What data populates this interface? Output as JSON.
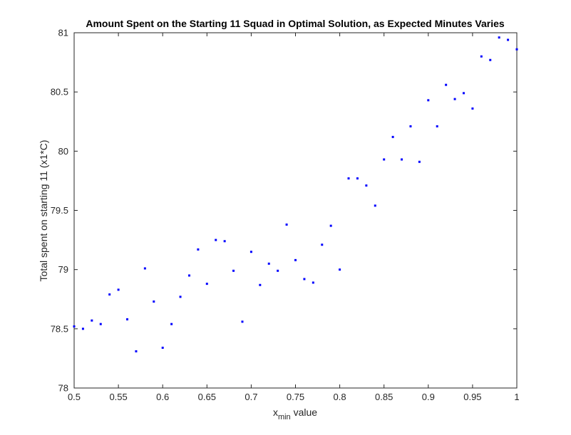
{
  "chart_data": {
    "type": "scatter",
    "title": "Amount Spent on the Starting 11 Squad in Optimal Solution, as Expected Minutes Varies",
    "xlabel": {
      "main": "x",
      "subscript": "min",
      "suffix": " value"
    },
    "ylabel": "Total spent on starting 11 (x1*C)",
    "xlim": [
      0.5,
      1.0
    ],
    "ylim": [
      78,
      81
    ],
    "xticks": [
      "0.5",
      "0.55",
      "0.6",
      "0.65",
      "0.7",
      "0.75",
      "0.8",
      "0.85",
      "0.9",
      "0.95",
      "1"
    ],
    "xtick_values": [
      0.5,
      0.55,
      0.6,
      0.65,
      0.7,
      0.75,
      0.8,
      0.85,
      0.9,
      0.95,
      1.0
    ],
    "yticks": [
      "78",
      "78.5",
      "79",
      "79.5",
      "80",
      "80.5",
      "81"
    ],
    "ytick_values": [
      78,
      78.5,
      79,
      79.5,
      80,
      80.5,
      81
    ],
    "grid": false,
    "marker_color": "#0000ff",
    "series": [
      {
        "x": [
          0.5,
          0.51,
          0.52,
          0.53,
          0.54,
          0.55,
          0.56,
          0.57,
          0.58,
          0.59,
          0.6,
          0.61,
          0.62,
          0.63,
          0.64,
          0.65,
          0.66,
          0.67,
          0.68,
          0.69,
          0.7,
          0.71,
          0.72,
          0.73,
          0.74,
          0.75,
          0.76,
          0.77,
          0.78,
          0.79,
          0.8,
          0.81,
          0.82,
          0.83,
          0.84,
          0.85,
          0.86,
          0.87,
          0.88,
          0.89,
          0.9,
          0.91,
          0.92,
          0.93,
          0.94,
          0.95,
          0.96,
          0.97,
          0.98,
          0.99,
          1.0
        ],
        "y": [
          78.52,
          78.5,
          78.57,
          78.54,
          78.79,
          78.83,
          78.58,
          78.31,
          79.01,
          78.73,
          78.34,
          78.54,
          78.77,
          78.95,
          79.17,
          78.88,
          79.25,
          79.24,
          78.99,
          78.56,
          79.15,
          78.87,
          79.05,
          78.99,
          79.38,
          79.08,
          78.92,
          78.89,
          79.21,
          79.37,
          79.0,
          79.77,
          79.77,
          79.71,
          79.54,
          79.93,
          80.12,
          79.93,
          80.21,
          79.91,
          80.43,
          80.21,
          80.56,
          80.44,
          80.49,
          80.36,
          80.8,
          80.77,
          80.96,
          80.94,
          80.86
        ]
      }
    ]
  }
}
